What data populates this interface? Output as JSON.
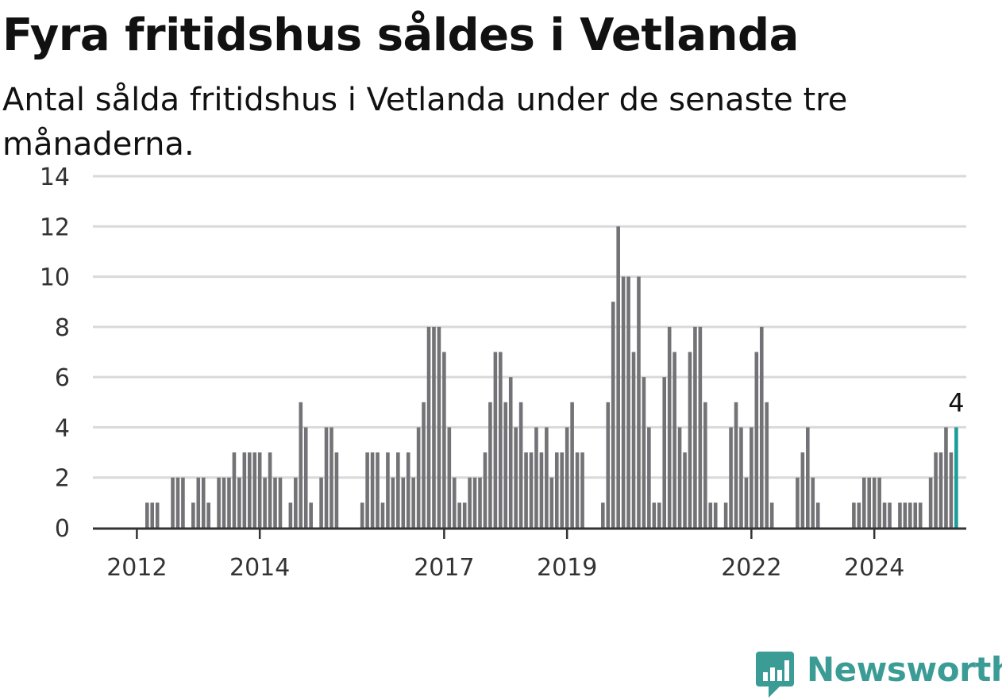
{
  "header": {
    "title": "Fyra fritidshus såldes i Vetlanda",
    "subtitle": "Antal sålda fritidshus i Vetlanda under de senaste tre månaderna."
  },
  "brand": {
    "name": "Newsworthy",
    "color": "#3b9c96",
    "icon": "bar-chart-speech-icon"
  },
  "colors": {
    "bar": "#737276",
    "highlight": "#1a9e98",
    "grid": "#d9d9d9",
    "axis": "#333333"
  },
  "chart_data": {
    "type": "bar",
    "title": "Fyra fritidshus såldes i Vetlanda",
    "subtitle": "Antal sålda fritidshus i Vetlanda under de senaste tre månaderna.",
    "xlabel": "",
    "ylabel": "",
    "ylim": [
      0,
      14
    ],
    "yticks": [
      0,
      2,
      4,
      6,
      8,
      10,
      12,
      14
    ],
    "xtick_labels": [
      "2012",
      "2014",
      "2017",
      "2019",
      "2022",
      "2024"
    ],
    "grid": true,
    "legend": "none",
    "series": [
      {
        "values": [
          0,
          0,
          0,
          0,
          0,
          0,
          0,
          0,
          0,
          1,
          1,
          1,
          0,
          0,
          2,
          2,
          2,
          0,
          1,
          2,
          2,
          1,
          0,
          2,
          2,
          2,
          3,
          2,
          3,
          3,
          3,
          3,
          2,
          3,
          2,
          2,
          0,
          1,
          2,
          5,
          4,
          1,
          0,
          2,
          4,
          4,
          3,
          0,
          0,
          0,
          0,
          1,
          3,
          3,
          3,
          1,
          3,
          2,
          3,
          2,
          3,
          2,
          4,
          5,
          8,
          8,
          8,
          7,
          4,
          2,
          1,
          1,
          2,
          2,
          2,
          3,
          5,
          7,
          7,
          5,
          6,
          4,
          5,
          3,
          3,
          4,
          3,
          4,
          2,
          3,
          3,
          4,
          5,
          3,
          3,
          0,
          0,
          0,
          1,
          5,
          9,
          12,
          10,
          10,
          7,
          10,
          6,
          4,
          1,
          1,
          6,
          8,
          7,
          4,
          3,
          7,
          8,
          8,
          5,
          1,
          1,
          0,
          1,
          4,
          5,
          4,
          2,
          4,
          7,
          8,
          5,
          1,
          0,
          0,
          0,
          0,
          2,
          3,
          4,
          2,
          1,
          0,
          0,
          0,
          0,
          0,
          0,
          1,
          1,
          2,
          2,
          2,
          2,
          1,
          1,
          0,
          1,
          1,
          1,
          1,
          1,
          0,
          2,
          3,
          3,
          4,
          3,
          4
        ]
      }
    ],
    "annotations": [
      {
        "text": "4",
        "target": "last-bar"
      }
    ]
  }
}
